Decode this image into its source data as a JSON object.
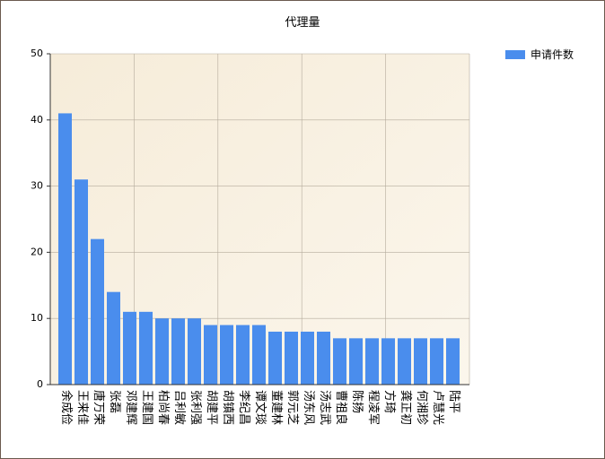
{
  "chart_data": {
    "type": "bar",
    "title": "代理量",
    "xlabel": "",
    "ylabel": "",
    "ylim": [
      0,
      50
    ],
    "yticks": [
      0,
      10,
      20,
      30,
      40,
      50
    ],
    "grid": true,
    "legend_position": "top-right",
    "series_color": "#4a8ded",
    "categories": [
      "余成俭",
      "王来佳",
      "唐万荣",
      "张磊",
      "邓建辉",
      "王建国",
      "柏尚春",
      "吕利敏",
      "张利强",
      "胡建平",
      "胡镇西",
      "李纪昌",
      "谭文琰",
      "董建林",
      "郭元芝",
      "汤东风",
      "汤志武",
      "曹祖良",
      "陈扬",
      "程凌军",
      "方琦",
      "龚正初",
      "何湘珍",
      "卢慧光",
      "陆平"
    ],
    "series": [
      {
        "name": "申请件数",
        "values": [
          41,
          31,
          22,
          14,
          11,
          11,
          10,
          10,
          10,
          9,
          9,
          9,
          9,
          8,
          8,
          8,
          8,
          7,
          7,
          7,
          7,
          7,
          7,
          7,
          7
        ]
      }
    ]
  }
}
